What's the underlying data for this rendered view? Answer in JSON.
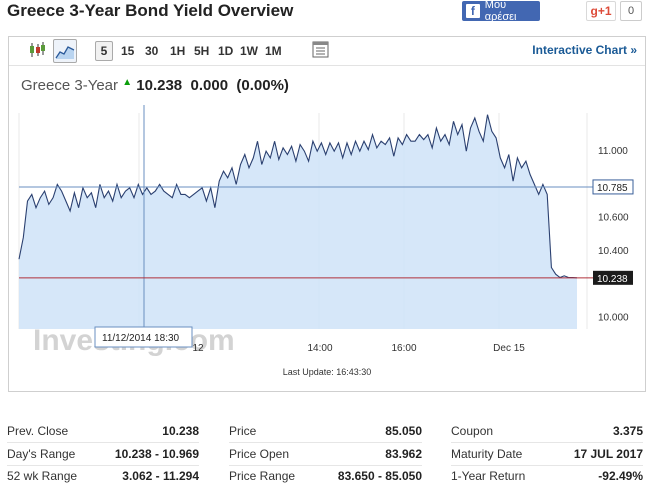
{
  "page": {
    "title": "Greece 3-Year Bond Yield Overview"
  },
  "social": {
    "facebook_label": "Μου αρέσει",
    "gplus_label": "g+1",
    "gplus_count": "0"
  },
  "toolbar": {
    "intervals": [
      "5",
      "15",
      "30",
      "1H",
      "5H",
      "1D",
      "1W",
      "1M"
    ],
    "selected_interval": "5",
    "interactive_label": "Interactive Chart »"
  },
  "quote": {
    "name": "Greece 3-Year",
    "price": "10.238",
    "change": "0.000",
    "change_pct": "(0.00%)"
  },
  "chart_data": {
    "type": "area",
    "title": "",
    "ylim": [
      9.93,
      11.23
    ],
    "y_ticks": [
      "11.000",
      "10.600",
      "10.400",
      "10.000"
    ],
    "x_ticks": [
      "12",
      "14:00",
      "16:00",
      "Dec 15"
    ],
    "crosshair_y_label": "10.785",
    "current_label": "10.238",
    "tooltip_date": "11/12/2014 18:30",
    "watermark": "Investing.com",
    "last_update_label": "Last Update: 16:43:30",
    "values": [
      10.35,
      10.48,
      10.7,
      10.74,
      10.66,
      10.72,
      10.76,
      10.68,
      10.72,
      10.8,
      10.76,
      10.7,
      10.64,
      10.75,
      10.66,
      10.78,
      10.72,
      10.75,
      10.66,
      10.8,
      10.72,
      10.76,
      10.7,
      10.8,
      10.72,
      10.76,
      10.78,
      10.72,
      10.8,
      10.74,
      10.78,
      10.74,
      10.76,
      10.8,
      10.76,
      10.74,
      10.72,
      10.8,
      10.74,
      10.74,
      10.72,
      10.74,
      10.76,
      10.78,
      10.7,
      10.78,
      10.66,
      10.82,
      10.88,
      10.84,
      10.9,
      10.8,
      10.92,
      10.98,
      10.9,
      10.96,
      11.06,
      10.92,
      11.0,
      10.96,
      11.06,
      10.95,
      11.02,
      10.98,
      11.03,
      10.94,
      11.04,
      11.0,
      10.94,
      11.06,
      11.0,
      11.05,
      10.98,
      11.05,
      11.0,
      11.05,
      10.96,
      11.05,
      10.98,
      11.06,
      11.0,
      11.06,
      11.01,
      11.1,
      11.02,
      11.06,
      11.04,
      11.08,
      10.97,
      11.08,
      11.04,
      11.1,
      11.06,
      11.06,
      11.1,
      11.07,
      11.1,
      11.02,
      11.14,
      11.06,
      11.1,
      11.04,
      11.18,
      11.1,
      11.16,
      11.0,
      11.14,
      11.2,
      11.12,
      11.06,
      11.22,
      11.12,
      11.08,
      10.96,
      10.9,
      10.98,
      10.82,
      10.96,
      10.9,
      10.94,
      10.86,
      10.8,
      10.74,
      10.8,
      10.74,
      10.3,
      10.26,
      10.24,
      10.25,
      10.24,
      10.24,
      10.238
    ]
  },
  "stats": {
    "col1": [
      {
        "label": "Prev. Close",
        "value": "10.238"
      },
      {
        "label": "Day's Range",
        "value": "10.238 - 10.969"
      },
      {
        "label": "52 wk Range",
        "value": "3.062 - 11.294"
      }
    ],
    "col2": [
      {
        "label": "Price",
        "value": "85.050"
      },
      {
        "label": "Price Open",
        "value": "83.962"
      },
      {
        "label": "Price Range",
        "value": "83.650 - 85.050"
      }
    ],
    "col3": [
      {
        "label": "Coupon",
        "value": "3.375"
      },
      {
        "label": "Maturity Date",
        "value": "17 JUL 2017"
      },
      {
        "label": "1-Year Return",
        "value": "-92.49%"
      }
    ]
  }
}
